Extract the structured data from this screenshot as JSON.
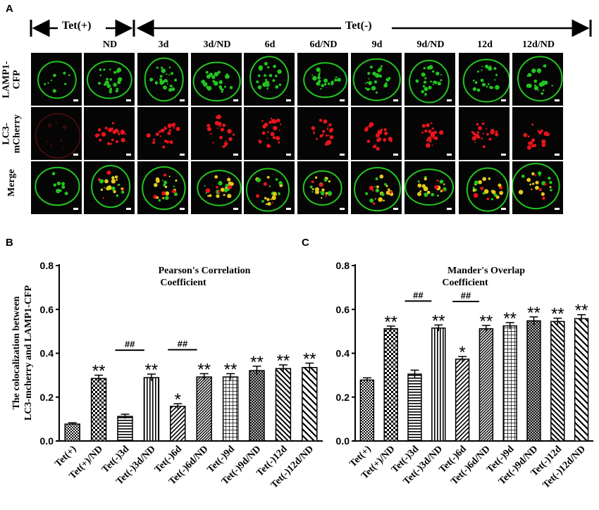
{
  "panel_a": {
    "letter": "A",
    "header_pos": "Tet(+)",
    "header_neg": "Tet(-)",
    "columns": [
      "",
      "ND",
      "3d",
      "3d/ND",
      "6d",
      "6d/ND",
      "9d",
      "9d/ND",
      "12d",
      "12d/ND"
    ],
    "rows": [
      {
        "label_line1": "LAMP1-",
        "label_line2": "CFP",
        "channel": "green"
      },
      {
        "label_line1": "LC3-",
        "label_line2": "mCherry",
        "channel": "red"
      },
      {
        "label_line1": "Merge",
        "label_line2": "",
        "channel": "merge"
      }
    ],
    "colors": {
      "green": "#22c51e",
      "red": "#e8141a",
      "merge_yellow": "#e6c91a"
    }
  },
  "panel_b": {
    "letter": "B",
    "ylabel_line1": "The colocalization between",
    "ylabel_line2": "LC3-mcherry and LAMP1-CFP"
  },
  "panel_c": {
    "letter": "C"
  },
  "chart_data": [
    {
      "type": "bar",
      "title": "Pearson's Correlation Coefficient",
      "title_line1": "Pearson's Correlation",
      "title_line2": "Coefficient",
      "xlabel": "",
      "ylabel": "The colocalization between LC3-mcherry and LAMP1-CFP",
      "ylim": [
        0.0,
        0.8
      ],
      "yticks": [
        "0.0",
        "0.2",
        "0.4",
        "0.6",
        "0.8"
      ],
      "categories": [
        "Tet(+)",
        "Tet(+)/ND",
        "Tet(-)3d",
        "Tet(-)3d/ND",
        "Tet(-)6d",
        "Tet(-)6d/ND",
        "Tet(-)9d",
        "Tet(-)9d/ND",
        "Tet(-)12d",
        "Tet(-)12d/ND"
      ],
      "values": [
        0.077,
        0.285,
        0.112,
        0.289,
        0.158,
        0.292,
        0.292,
        0.321,
        0.33,
        0.335
      ],
      "errors": [
        0.006,
        0.015,
        0.01,
        0.016,
        0.012,
        0.015,
        0.015,
        0.02,
        0.017,
        0.02
      ],
      "significance": [
        "",
        "**",
        "",
        "**",
        "*",
        "**",
        "**",
        "**",
        "**",
        "**"
      ],
      "brackets": [
        {
          "label": "##",
          "from": 2,
          "to": 3
        },
        {
          "label": "##",
          "from": 4,
          "to": 5
        }
      ],
      "patterns": [
        "checker",
        "checker-large",
        "hlines",
        "vlines",
        "diag-left",
        "diag-left-dense",
        "grid",
        "grid-dense",
        "diag-right",
        "diag-right-wide"
      ],
      "grid": false,
      "legend": "none"
    },
    {
      "type": "bar",
      "title": "Mander's Overlap Coefficient",
      "title_line1": "Mander's Overlap",
      "title_line2": "Coefficient",
      "xlabel": "",
      "ylabel": "",
      "ylim": [
        0.0,
        0.8
      ],
      "yticks": [
        "0.0",
        "0.2",
        "0.4",
        "0.6",
        "0.8"
      ],
      "categories": [
        "Tet(+)",
        "Tet(+)/ND",
        "Tet(-)3d",
        "Tet(-)3d/ND",
        "Tet(-)6d",
        "Tet(-)6d/ND",
        "Tet(-)9d",
        "Tet(-)9d/ND",
        "Tet(-)12d",
        "Tet(-)12d/ND"
      ],
      "values": [
        0.278,
        0.512,
        0.305,
        0.515,
        0.373,
        0.512,
        0.525,
        0.548,
        0.545,
        0.558
      ],
      "errors": [
        0.01,
        0.012,
        0.018,
        0.014,
        0.012,
        0.015,
        0.015,
        0.018,
        0.015,
        0.018
      ],
      "significance": [
        "",
        "**",
        "",
        "**",
        "*",
        "**",
        "**",
        "**",
        "**",
        "**"
      ],
      "brackets": [
        {
          "label": "##",
          "from": 2,
          "to": 3
        },
        {
          "label": "##",
          "from": 4,
          "to": 5
        }
      ],
      "patterns": [
        "checker",
        "checker-large",
        "hlines",
        "vlines",
        "diag-left",
        "diag-left-dense",
        "grid",
        "grid-dense",
        "diag-right",
        "diag-right-wide"
      ],
      "grid": false,
      "legend": "none"
    }
  ]
}
